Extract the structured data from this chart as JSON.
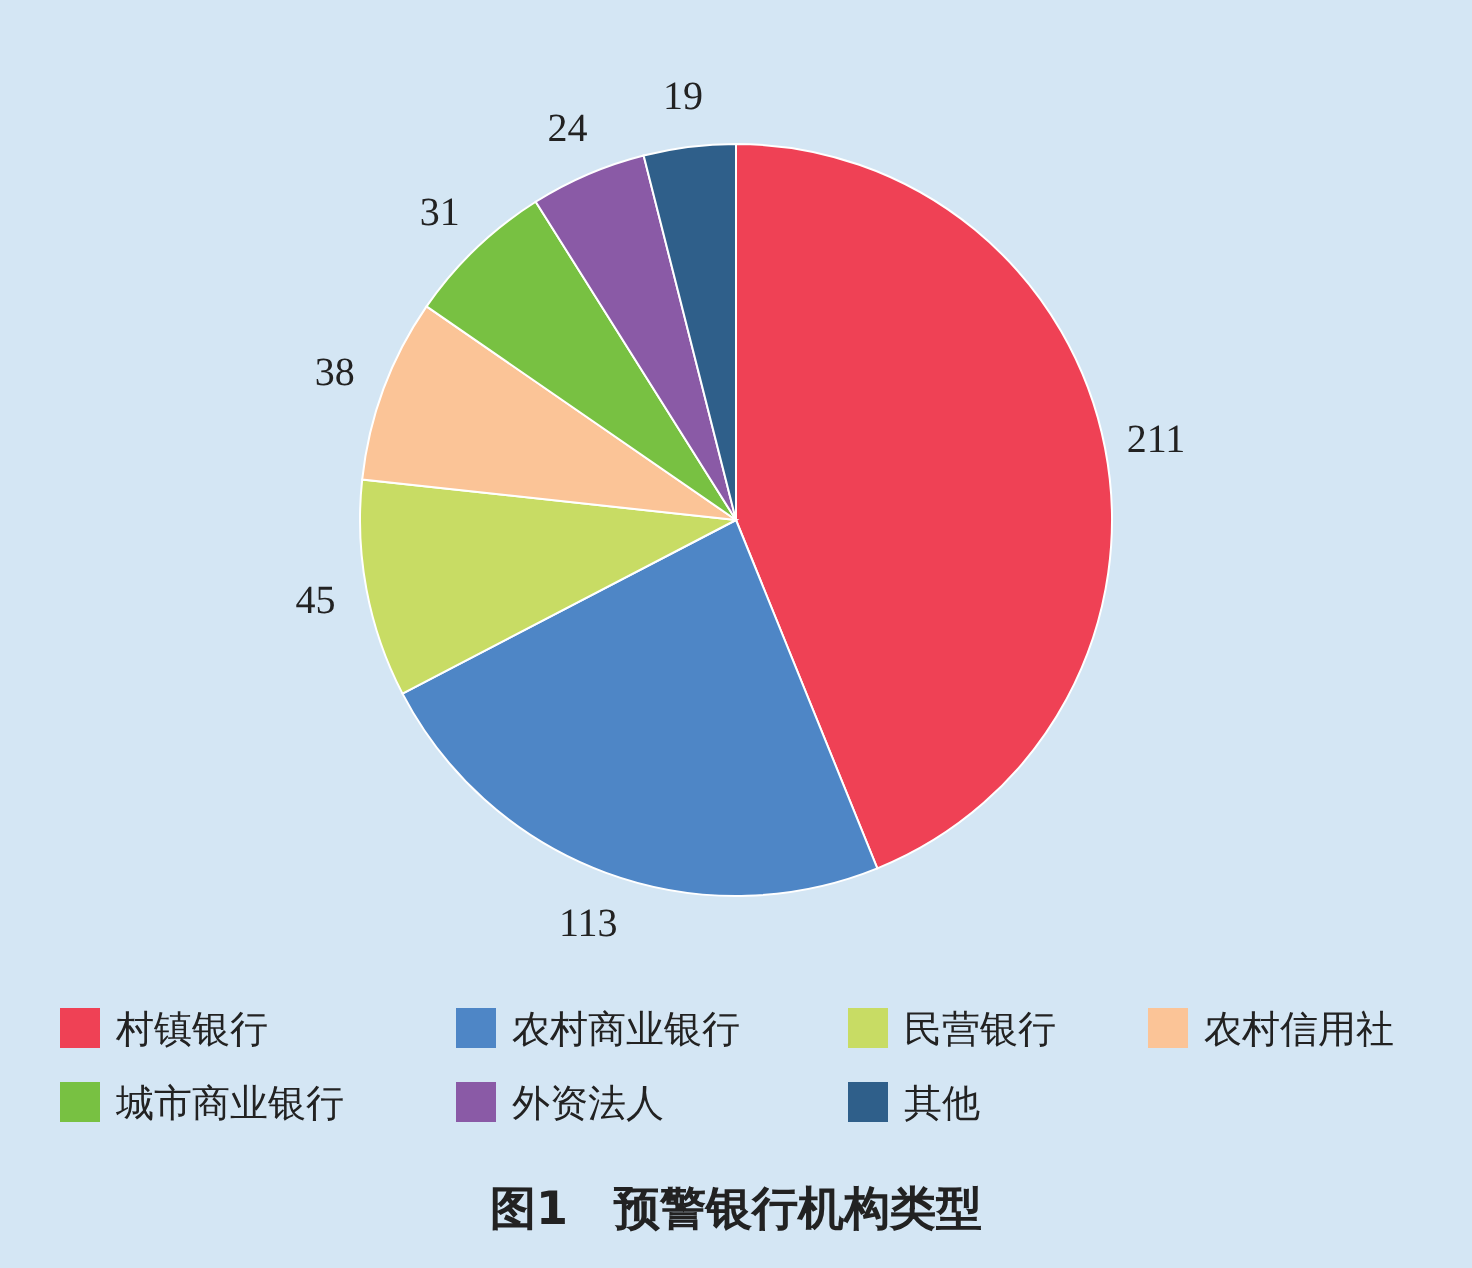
{
  "chart_data": {
    "type": "pie",
    "title": "图1　预警银行机构类型",
    "categories": [
      "村镇银行",
      "农村商业银行",
      "民营银行",
      "农村信用社",
      "城市商业银行",
      "外资法人",
      "其他"
    ],
    "values": [
      211,
      113,
      45,
      38,
      31,
      24,
      19
    ],
    "colors": [
      "#ef4155",
      "#4e86c6",
      "#c8dc64",
      "#fbc497",
      "#78c142",
      "#8a5aa6",
      "#2f5f8a"
    ],
    "data_labels": true,
    "legend": "bottom"
  }
}
